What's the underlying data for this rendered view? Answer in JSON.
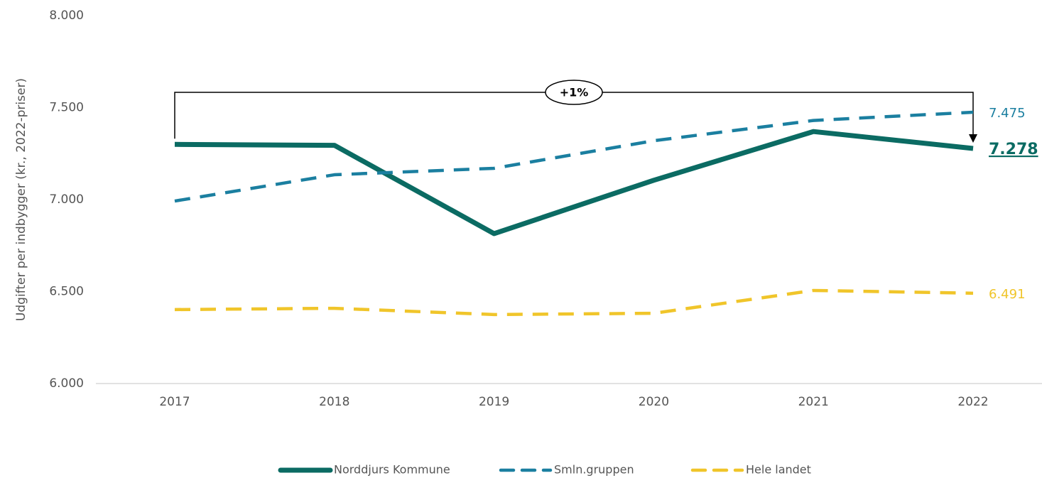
{
  "chart_data": {
    "type": "line",
    "y_label": "Udgifter per indbygger (kr., 2022-priser)",
    "annotation": "+1%",
    "categories": [
      "2017",
      "2018",
      "2019",
      "2020",
      "2021",
      "2022"
    ],
    "ylim": [
      6000,
      8000
    ],
    "yticks": [
      {
        "value": 6000,
        "label": "6.000"
      },
      {
        "value": 6500,
        "label": "6.500"
      },
      {
        "value": 7000,
        "label": "7.000"
      },
      {
        "value": 7500,
        "label": "7.500"
      },
      {
        "value": 8000,
        "label": "8.000"
      }
    ],
    "grid": false,
    "legend": "bottom",
    "series": [
      {
        "name": "Norddjurs Kommune",
        "color": "#0b6b63",
        "dash": false,
        "values": [
          7300,
          7295,
          6815,
          7105,
          7370,
          7278
        ],
        "value_labels": [
          null,
          null,
          null,
          null,
          null,
          "7.278"
        ]
      },
      {
        "name": "Smln.gruppen",
        "color": "#1b7fa0",
        "dash": true,
        "values": [
          6992,
          7135,
          7170,
          7320,
          7430,
          7475
        ],
        "value_labels": [
          null,
          null,
          null,
          null,
          null,
          "7.475"
        ]
      },
      {
        "name": "Hele landet",
        "color": "#f0c52a",
        "dash": true,
        "values": [
          6402,
          6409,
          6375,
          6382,
          6506,
          6491
        ],
        "value_labels": [
          null,
          null,
          null,
          null,
          null,
          "6.491"
        ]
      }
    ]
  }
}
